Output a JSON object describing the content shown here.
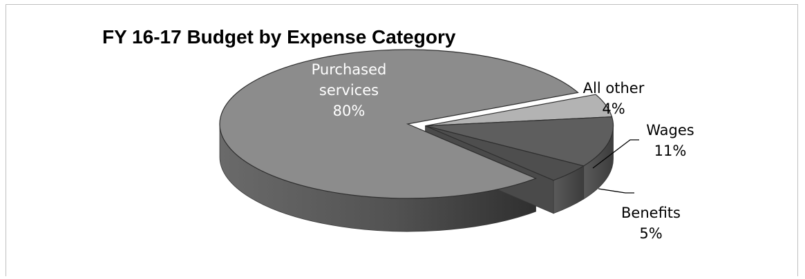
{
  "chart_data": {
    "type": "pie",
    "style": "3d-exploded",
    "title": "FY 16-17 Budget by Expense Category",
    "legend": "none",
    "slices": [
      {
        "name": "Purchased services",
        "value": 80,
        "label_lines": [
          "Purchased",
          "services",
          "80%"
        ],
        "color": "#8c8c8c",
        "exploded": false
      },
      {
        "name": "Benefits",
        "value": 5,
        "label_lines": [
          "Benefits",
          "5%"
        ],
        "color": "#b3b3b3",
        "exploded": true
      },
      {
        "name": "Wages",
        "value": 11,
        "label_lines": [
          "Wages",
          "11%"
        ],
        "color": "#5e5e5e",
        "exploded": true
      },
      {
        "name": "All other",
        "value": 4,
        "label_lines": [
          "All other",
          "4%"
        ],
        "color": "#4e4e4e",
        "exploded": true
      }
    ]
  }
}
